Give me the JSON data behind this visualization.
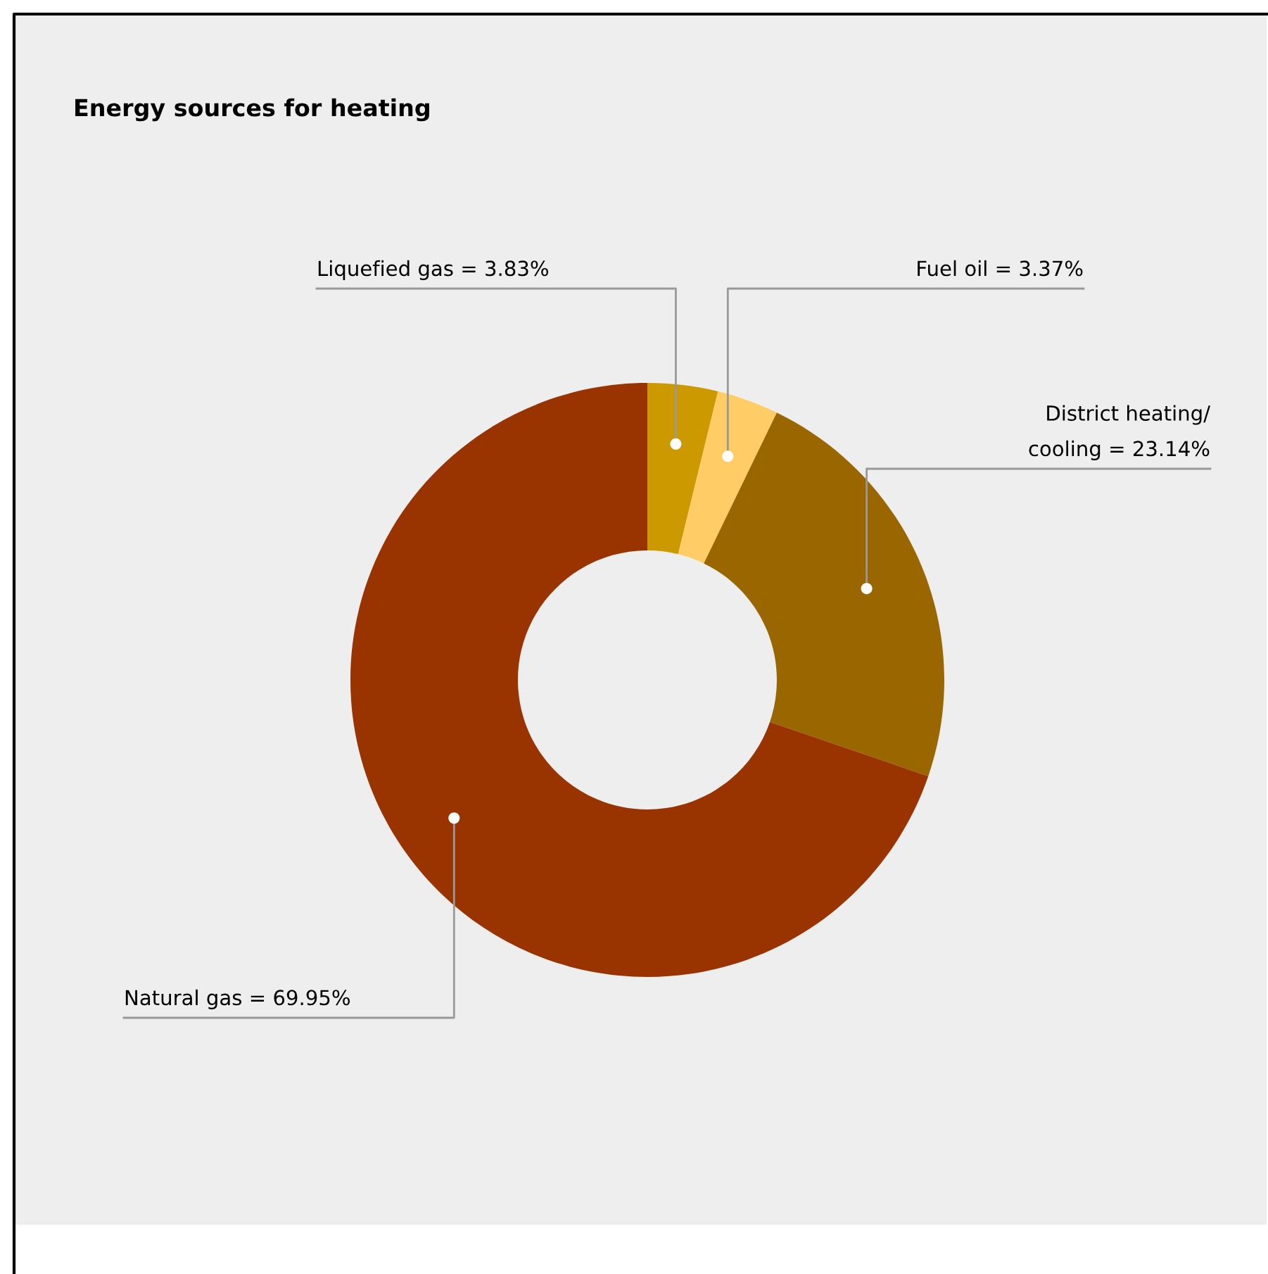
{
  "chart_data": {
    "type": "donut",
    "title": "Energy sources for heating",
    "categories": [
      "Liquefied gas",
      "Fuel oil",
      "District heating/cooling",
      "Natural gas"
    ],
    "values": [
      3.83,
      3.37,
      23.14,
      69.95
    ],
    "value_labels": [
      "= 3.83%",
      "= 3.37%",
      "= 23.14%",
      "= 69.95%"
    ],
    "colors": [
      "#cc9900",
      "#ffcc66",
      "#996600",
      "#993300"
    ],
    "legend": false
  }
}
